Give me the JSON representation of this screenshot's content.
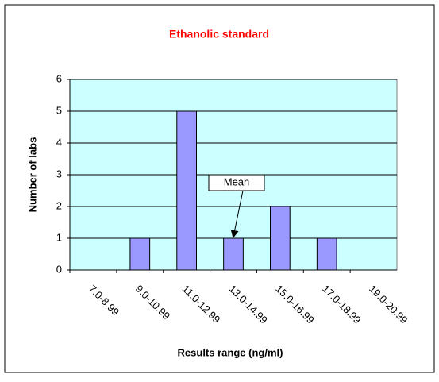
{
  "chart_data": {
    "type": "bar",
    "title": "Ethanolic standard",
    "x_label": "Results range (ng/ml)",
    "y_label": "Number of labs",
    "categories": [
      "7.0-8.99",
      "9.0-10.99",
      "11.0-12.99",
      "13.0-14.99",
      "15.0-16.99",
      "17.0-18.99",
      "19.0-20.99"
    ],
    "values": [
      0,
      1,
      5,
      1,
      2,
      1,
      0
    ],
    "color": "#9999ff",
    "ylim": [
      0,
      6
    ],
    "yticks": [
      0,
      1,
      2,
      3,
      4,
      5,
      6
    ],
    "grid": true,
    "annotations": [
      {
        "text": "Mean",
        "category": "13.0-14.99"
      }
    ]
  }
}
